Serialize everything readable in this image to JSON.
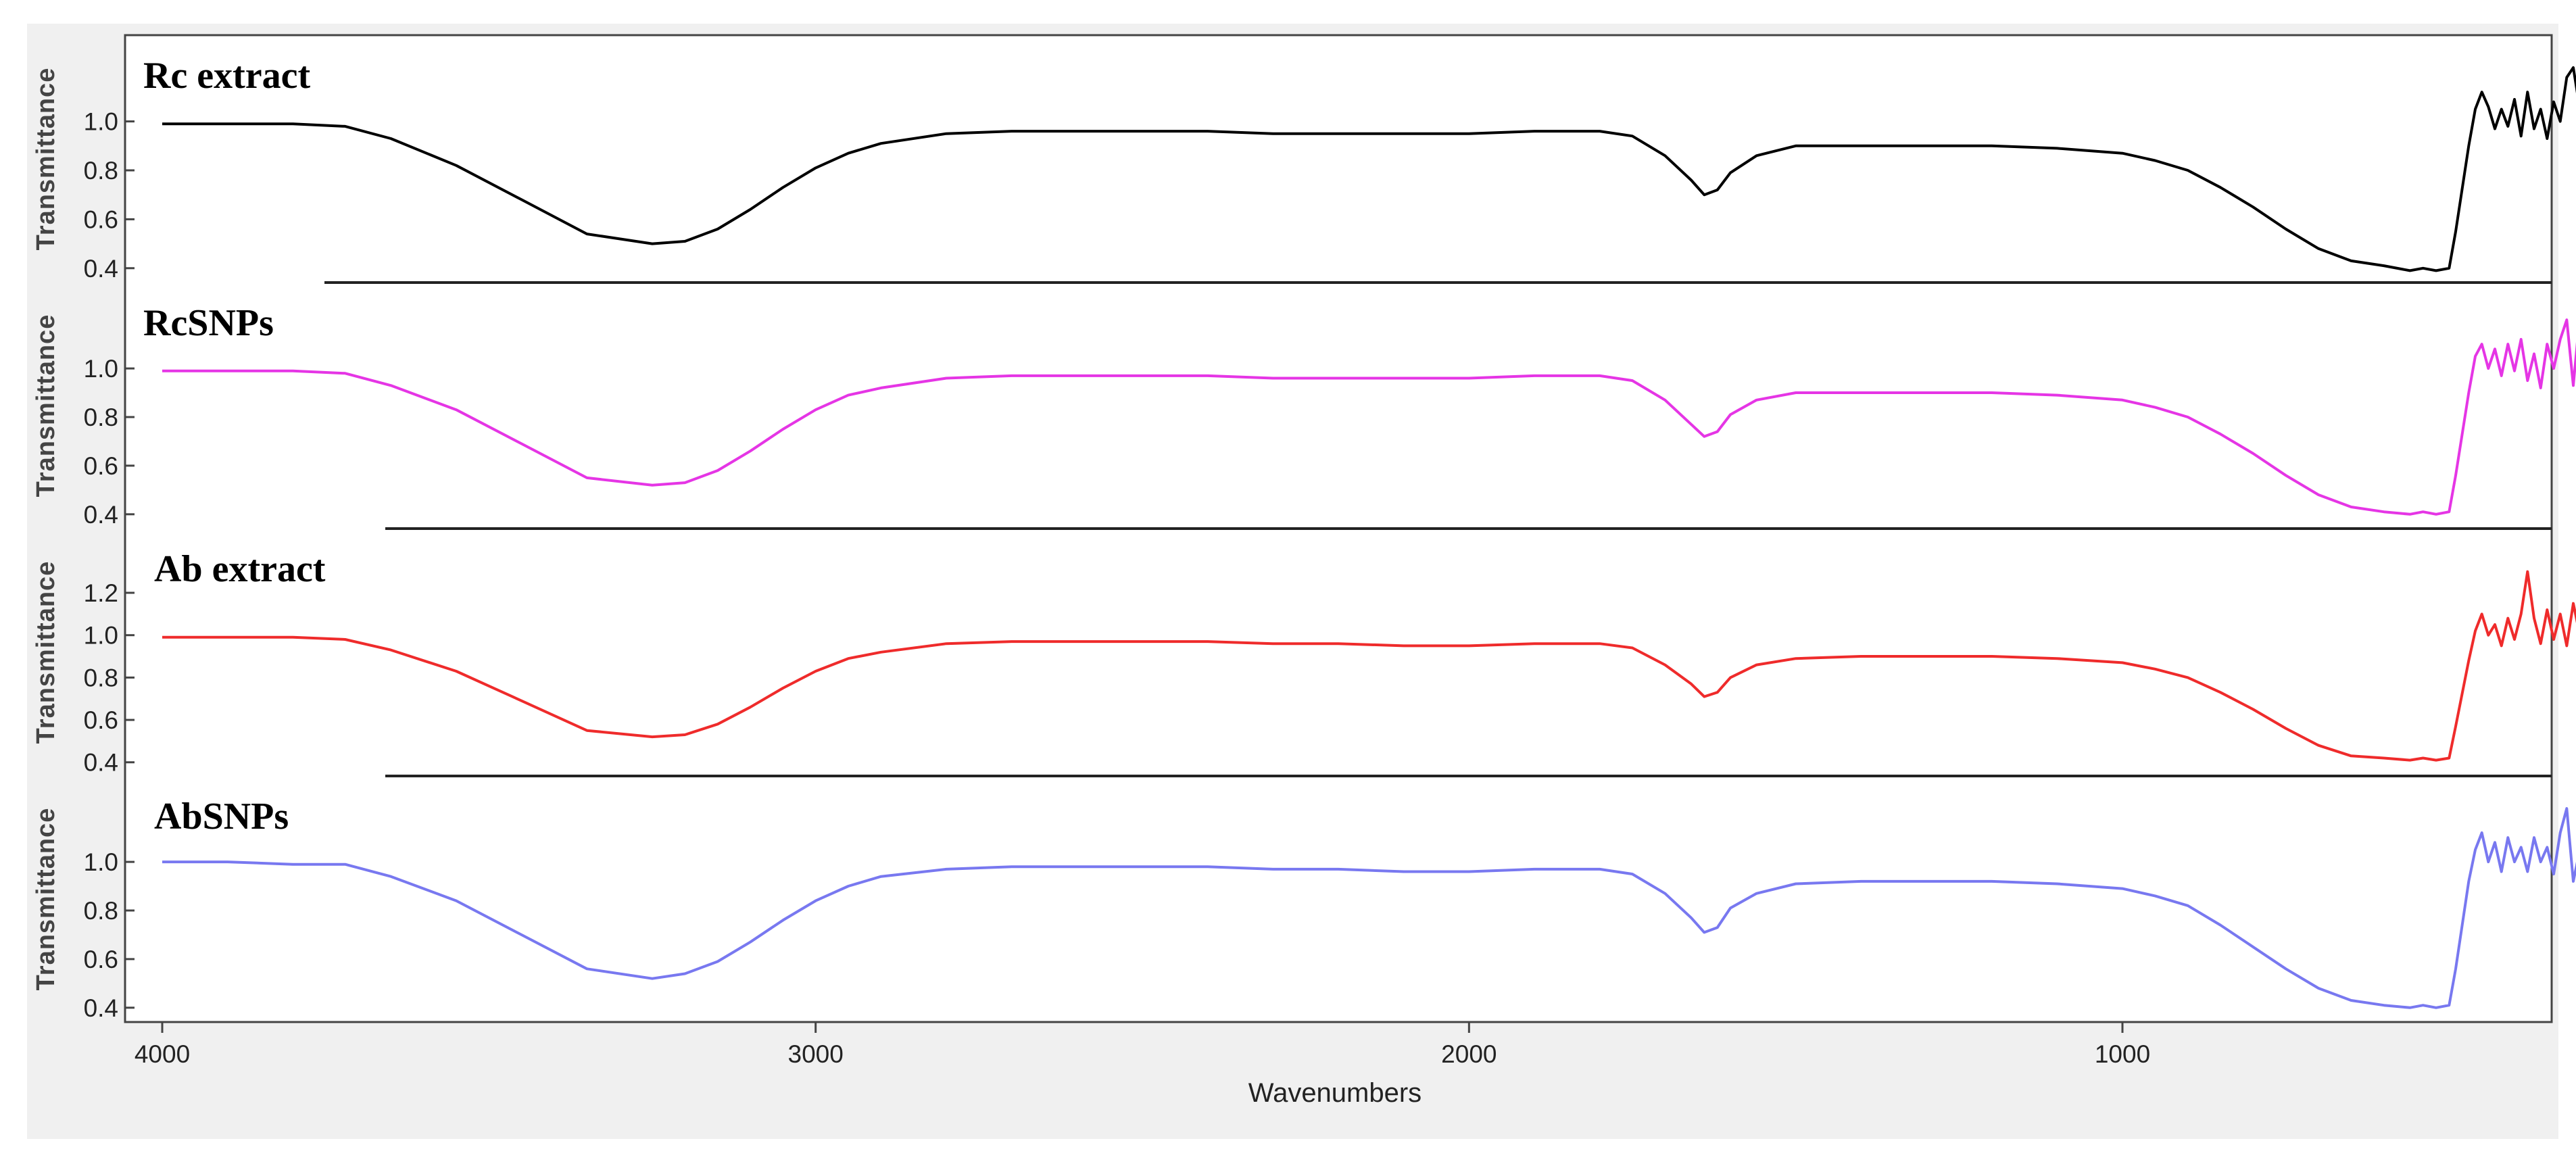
{
  "chart_data": {
    "type": "line",
    "xlabel": "Wavenumbers",
    "x_ticks": [
      4000,
      3000,
      2000,
      1000
    ],
    "xlim": [
      4000,
      400
    ],
    "ylabel": "Transmittance",
    "grid": false,
    "panels": [
      {
        "name": "Rc extract",
        "color": "#000000",
        "ylim": [
          0.38,
          1.22
        ],
        "y_ticks": [
          "0.4",
          "0.6",
          "0.8",
          "1.0"
        ],
        "points": [
          [
            4000,
            0.99
          ],
          [
            3900,
            0.99
          ],
          [
            3800,
            0.99
          ],
          [
            3720,
            0.98
          ],
          [
            3650,
            0.93
          ],
          [
            3550,
            0.82
          ],
          [
            3450,
            0.68
          ],
          [
            3350,
            0.54
          ],
          [
            3250,
            0.5
          ],
          [
            3200,
            0.51
          ],
          [
            3150,
            0.56
          ],
          [
            3100,
            0.64
          ],
          [
            3050,
            0.73
          ],
          [
            3000,
            0.81
          ],
          [
            2950,
            0.87
          ],
          [
            2900,
            0.91
          ],
          [
            2800,
            0.95
          ],
          [
            2700,
            0.96
          ],
          [
            2600,
            0.96
          ],
          [
            2500,
            0.96
          ],
          [
            2400,
            0.96
          ],
          [
            2300,
            0.95
          ],
          [
            2200,
            0.95
          ],
          [
            2100,
            0.95
          ],
          [
            2000,
            0.95
          ],
          [
            1900,
            0.96
          ],
          [
            1800,
            0.96
          ],
          [
            1750,
            0.94
          ],
          [
            1700,
            0.86
          ],
          [
            1660,
            0.76
          ],
          [
            1640,
            0.7
          ],
          [
            1620,
            0.72
          ],
          [
            1600,
            0.79
          ],
          [
            1560,
            0.86
          ],
          [
            1500,
            0.9
          ],
          [
            1400,
            0.9
          ],
          [
            1300,
            0.9
          ],
          [
            1200,
            0.9
          ],
          [
            1100,
            0.89
          ],
          [
            1000,
            0.87
          ],
          [
            950,
            0.84
          ],
          [
            900,
            0.8
          ],
          [
            850,
            0.73
          ],
          [
            800,
            0.65
          ],
          [
            750,
            0.56
          ],
          [
            700,
            0.48
          ],
          [
            650,
            0.43
          ],
          [
            600,
            0.41
          ],
          [
            560,
            0.39
          ],
          [
            540,
            0.4
          ],
          [
            520,
            0.39
          ],
          [
            500,
            0.4
          ],
          [
            490,
            0.55
          ],
          [
            470,
            0.9
          ],
          [
            460,
            1.05
          ],
          [
            450,
            1.12
          ],
          [
            440,
            1.06
          ],
          [
            430,
            0.97
          ],
          [
            420,
            1.05
          ],
          [
            410,
            0.98
          ],
          [
            400,
            1.09
          ],
          [
            390,
            0.94
          ],
          [
            380,
            1.12
          ],
          [
            370,
            0.97
          ],
          [
            360,
            1.05
          ],
          [
            350,
            0.93
          ],
          [
            340,
            1.08
          ],
          [
            330,
            1.0
          ],
          [
            320,
            1.18
          ],
          [
            310,
            1.22
          ],
          [
            300,
            1.05
          ],
          [
            290,
            0.97
          ]
        ]
      },
      {
        "name": "RcSNPs",
        "color": "#e535e5",
        "ylim": [
          0.38,
          1.22
        ],
        "y_ticks": [
          "0.4",
          "0.6",
          "0.8",
          "1.0"
        ],
        "points": [
          [
            4000,
            0.99
          ],
          [
            3900,
            0.99
          ],
          [
            3800,
            0.99
          ],
          [
            3720,
            0.98
          ],
          [
            3650,
            0.93
          ],
          [
            3550,
            0.83
          ],
          [
            3450,
            0.69
          ],
          [
            3350,
            0.55
          ],
          [
            3250,
            0.52
          ],
          [
            3200,
            0.53
          ],
          [
            3150,
            0.58
          ],
          [
            3100,
            0.66
          ],
          [
            3050,
            0.75
          ],
          [
            3000,
            0.83
          ],
          [
            2950,
            0.89
          ],
          [
            2900,
            0.92
          ],
          [
            2800,
            0.96
          ],
          [
            2700,
            0.97
          ],
          [
            2600,
            0.97
          ],
          [
            2500,
            0.97
          ],
          [
            2400,
            0.97
          ],
          [
            2300,
            0.96
          ],
          [
            2200,
            0.96
          ],
          [
            2100,
            0.96
          ],
          [
            2000,
            0.96
          ],
          [
            1900,
            0.97
          ],
          [
            1800,
            0.97
          ],
          [
            1750,
            0.95
          ],
          [
            1700,
            0.87
          ],
          [
            1660,
            0.77
          ],
          [
            1640,
            0.72
          ],
          [
            1620,
            0.74
          ],
          [
            1600,
            0.81
          ],
          [
            1560,
            0.87
          ],
          [
            1500,
            0.9
          ],
          [
            1400,
            0.9
          ],
          [
            1300,
            0.9
          ],
          [
            1200,
            0.9
          ],
          [
            1100,
            0.89
          ],
          [
            1000,
            0.87
          ],
          [
            950,
            0.84
          ],
          [
            900,
            0.8
          ],
          [
            850,
            0.73
          ],
          [
            800,
            0.65
          ],
          [
            750,
            0.56
          ],
          [
            700,
            0.48
          ],
          [
            650,
            0.43
          ],
          [
            600,
            0.41
          ],
          [
            560,
            0.4
          ],
          [
            540,
            0.41
          ],
          [
            520,
            0.4
          ],
          [
            500,
            0.41
          ],
          [
            490,
            0.56
          ],
          [
            470,
            0.9
          ],
          [
            460,
            1.05
          ],
          [
            450,
            1.1
          ],
          [
            440,
            1.0
          ],
          [
            430,
            1.08
          ],
          [
            420,
            0.97
          ],
          [
            410,
            1.1
          ],
          [
            400,
            0.99
          ],
          [
            390,
            1.12
          ],
          [
            380,
            0.95
          ],
          [
            370,
            1.06
          ],
          [
            360,
            0.92
          ],
          [
            350,
            1.1
          ],
          [
            340,
            1.0
          ],
          [
            330,
            1.12
          ],
          [
            320,
            1.2
          ],
          [
            310,
            0.93
          ],
          [
            300,
            1.22
          ],
          [
            290,
            0.95
          ]
        ]
      },
      {
        "name": "Ab extract",
        "color": "#ef2b2b",
        "ylim": [
          0.38,
          1.35
        ],
        "y_ticks": [
          "0.4",
          "0.6",
          "0.8",
          "1.0",
          "1.2"
        ],
        "points": [
          [
            4000,
            0.99
          ],
          [
            3900,
            0.99
          ],
          [
            3800,
            0.99
          ],
          [
            3720,
            0.98
          ],
          [
            3650,
            0.93
          ],
          [
            3550,
            0.83
          ],
          [
            3450,
            0.69
          ],
          [
            3350,
            0.55
          ],
          [
            3250,
            0.52
          ],
          [
            3200,
            0.53
          ],
          [
            3150,
            0.58
          ],
          [
            3100,
            0.66
          ],
          [
            3050,
            0.75
          ],
          [
            3000,
            0.83
          ],
          [
            2950,
            0.89
          ],
          [
            2900,
            0.92
          ],
          [
            2800,
            0.96
          ],
          [
            2700,
            0.97
          ],
          [
            2600,
            0.97
          ],
          [
            2500,
            0.97
          ],
          [
            2400,
            0.97
          ],
          [
            2300,
            0.96
          ],
          [
            2200,
            0.96
          ],
          [
            2100,
            0.95
          ],
          [
            2000,
            0.95
          ],
          [
            1900,
            0.96
          ],
          [
            1800,
            0.96
          ],
          [
            1750,
            0.94
          ],
          [
            1700,
            0.86
          ],
          [
            1660,
            0.77
          ],
          [
            1640,
            0.71
          ],
          [
            1620,
            0.73
          ],
          [
            1600,
            0.8
          ],
          [
            1560,
            0.86
          ],
          [
            1500,
            0.89
          ],
          [
            1400,
            0.9
          ],
          [
            1300,
            0.9
          ],
          [
            1200,
            0.9
          ],
          [
            1100,
            0.89
          ],
          [
            1000,
            0.87
          ],
          [
            950,
            0.84
          ],
          [
            900,
            0.8
          ],
          [
            850,
            0.73
          ],
          [
            800,
            0.65
          ],
          [
            750,
            0.56
          ],
          [
            700,
            0.48
          ],
          [
            650,
            0.43
          ],
          [
            600,
            0.42
          ],
          [
            560,
            0.41
          ],
          [
            540,
            0.42
          ],
          [
            520,
            0.41
          ],
          [
            500,
            0.42
          ],
          [
            490,
            0.57
          ],
          [
            470,
            0.88
          ],
          [
            460,
            1.02
          ],
          [
            450,
            1.1
          ],
          [
            440,
            1.0
          ],
          [
            430,
            1.05
          ],
          [
            420,
            0.95
          ],
          [
            410,
            1.08
          ],
          [
            400,
            0.98
          ],
          [
            390,
            1.1
          ],
          [
            380,
            1.3
          ],
          [
            370,
            1.08
          ],
          [
            360,
            0.96
          ],
          [
            350,
            1.12
          ],
          [
            340,
            0.98
          ],
          [
            330,
            1.1
          ],
          [
            320,
            0.95
          ],
          [
            310,
            1.15
          ],
          [
            300,
            1.0
          ],
          [
            290,
            1.1
          ]
        ]
      },
      {
        "name": "AbSNPs",
        "color": "#7878f0",
        "ylim": [
          0.38,
          1.22
        ],
        "y_ticks": [
          "0.4",
          "0.6",
          "0.8",
          "1.0"
        ],
        "points": [
          [
            4000,
            1.0
          ],
          [
            3900,
            1.0
          ],
          [
            3800,
            0.99
          ],
          [
            3720,
            0.99
          ],
          [
            3650,
            0.94
          ],
          [
            3550,
            0.84
          ],
          [
            3450,
            0.7
          ],
          [
            3350,
            0.56
          ],
          [
            3250,
            0.52
          ],
          [
            3200,
            0.54
          ],
          [
            3150,
            0.59
          ],
          [
            3100,
            0.67
          ],
          [
            3050,
            0.76
          ],
          [
            3000,
            0.84
          ],
          [
            2950,
            0.9
          ],
          [
            2900,
            0.94
          ],
          [
            2800,
            0.97
          ],
          [
            2700,
            0.98
          ],
          [
            2600,
            0.98
          ],
          [
            2500,
            0.98
          ],
          [
            2400,
            0.98
          ],
          [
            2300,
            0.97
          ],
          [
            2200,
            0.97
          ],
          [
            2100,
            0.96
          ],
          [
            2000,
            0.96
          ],
          [
            1900,
            0.97
          ],
          [
            1800,
            0.97
          ],
          [
            1750,
            0.95
          ],
          [
            1700,
            0.87
          ],
          [
            1660,
            0.77
          ],
          [
            1640,
            0.71
          ],
          [
            1620,
            0.73
          ],
          [
            1600,
            0.81
          ],
          [
            1560,
            0.87
          ],
          [
            1500,
            0.91
          ],
          [
            1400,
            0.92
          ],
          [
            1300,
            0.92
          ],
          [
            1200,
            0.92
          ],
          [
            1100,
            0.91
          ],
          [
            1000,
            0.89
          ],
          [
            950,
            0.86
          ],
          [
            900,
            0.82
          ],
          [
            850,
            0.74
          ],
          [
            800,
            0.65
          ],
          [
            750,
            0.56
          ],
          [
            700,
            0.48
          ],
          [
            650,
            0.43
          ],
          [
            600,
            0.41
          ],
          [
            560,
            0.4
          ],
          [
            540,
            0.41
          ],
          [
            520,
            0.4
          ],
          [
            500,
            0.41
          ],
          [
            490,
            0.56
          ],
          [
            470,
            0.92
          ],
          [
            460,
            1.05
          ],
          [
            450,
            1.12
          ],
          [
            440,
            1.0
          ],
          [
            430,
            1.08
          ],
          [
            420,
            0.96
          ],
          [
            410,
            1.1
          ],
          [
            400,
            1.0
          ],
          [
            390,
            1.06
          ],
          [
            380,
            0.96
          ],
          [
            370,
            1.1
          ],
          [
            360,
            1.0
          ],
          [
            350,
            1.06
          ],
          [
            340,
            0.95
          ],
          [
            330,
            1.12
          ],
          [
            320,
            1.22
          ],
          [
            310,
            0.92
          ],
          [
            300,
            1.05
          ],
          [
            290,
            0.86
          ]
        ]
      }
    ]
  }
}
